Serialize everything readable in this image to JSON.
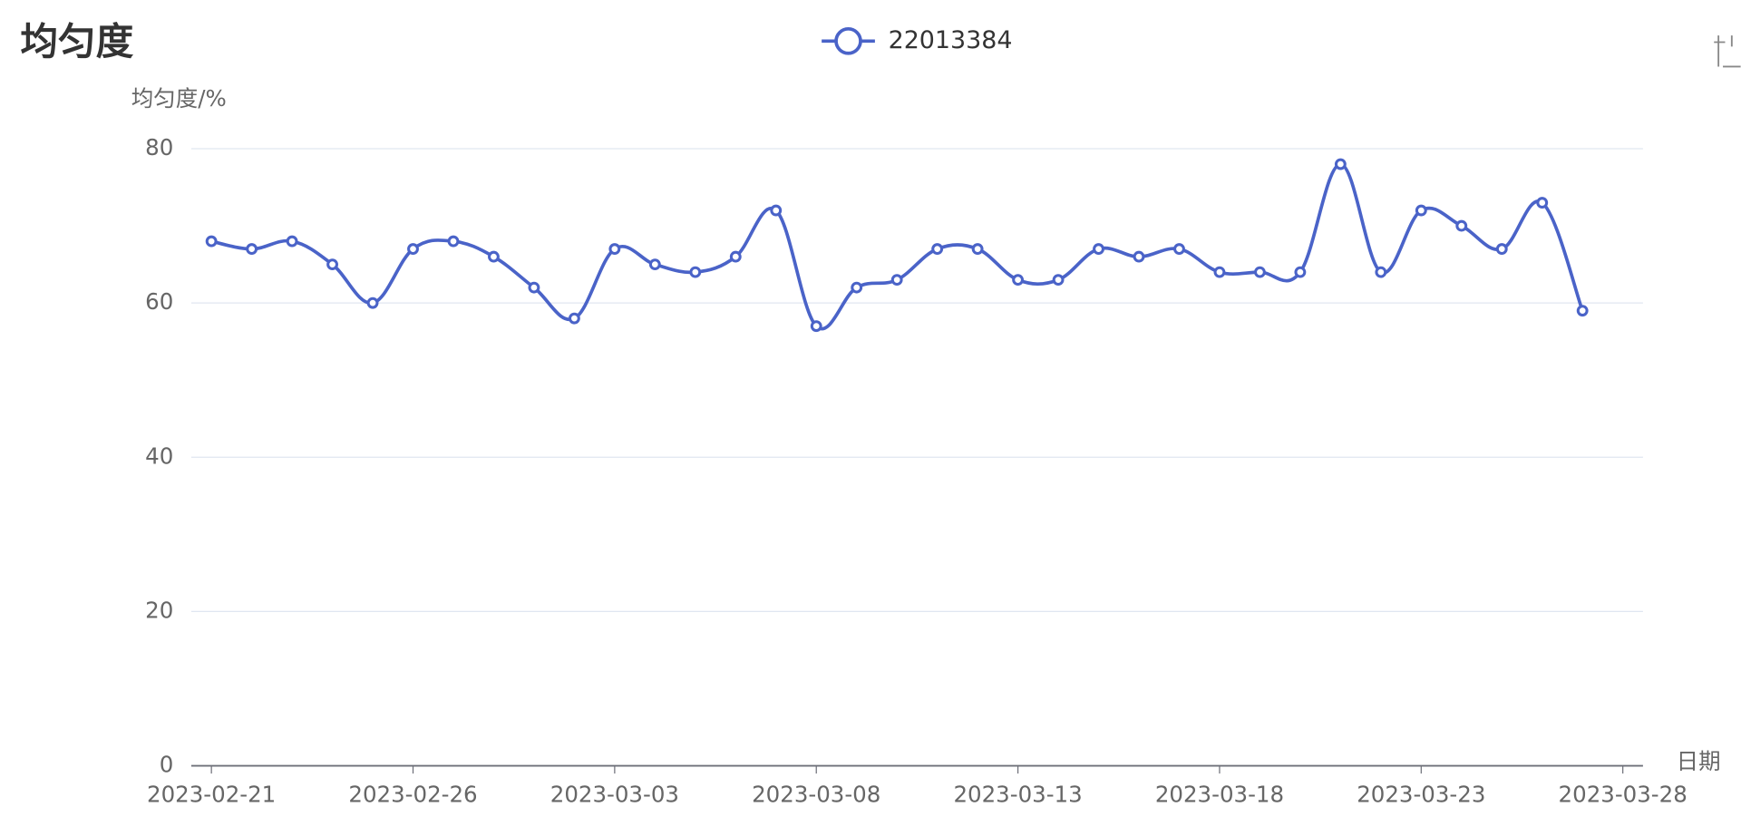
{
  "chart_data": {
    "type": "line",
    "title": "均匀度",
    "y_label": "均匀度/%",
    "x_label": "日期",
    "x": [
      "2023-02-21",
      "2023-02-22",
      "2023-02-23",
      "2023-02-24",
      "2023-02-25",
      "2023-02-26",
      "2023-02-27",
      "2023-02-28",
      "2023-03-01",
      "2023-03-02",
      "2023-03-03",
      "2023-03-04",
      "2023-03-05",
      "2023-03-06",
      "2023-03-07",
      "2023-03-08",
      "2023-03-09",
      "2023-03-10",
      "2023-03-11",
      "2023-03-12",
      "2023-03-13",
      "2023-03-14",
      "2023-03-15",
      "2023-03-16",
      "2023-03-17",
      "2023-03-18",
      "2023-03-19",
      "2023-03-20",
      "2023-03-21",
      "2023-03-22",
      "2023-03-23",
      "2023-03-24",
      "2023-03-25",
      "2023-03-26",
      "2023-03-27"
    ],
    "series": [
      {
        "name": "22013384",
        "color": "#4a63c8",
        "smooth": true,
        "values": [
          68,
          67,
          68,
          65,
          60,
          67,
          68,
          66,
          62,
          58,
          67,
          65,
          64,
          66,
          72,
          57,
          62,
          63,
          67,
          67,
          63,
          63,
          67,
          66,
          67,
          64,
          64,
          64,
          78,
          64,
          72,
          70,
          67,
          73,
          59
        ]
      }
    ],
    "xlim": [
      "2023-02-20T12:00:00Z",
      "2023-03-28T12:00:00Z"
    ],
    "xticks": [
      "2023-02-21",
      "2023-02-26",
      "2023-03-03",
      "2023-03-08",
      "2023-03-13",
      "2023-03-18",
      "2023-03-23",
      "2023-03-28"
    ],
    "ylim": [
      0,
      80
    ],
    "yticks": [
      0,
      20,
      40,
      60,
      80
    ],
    "grid": true,
    "legend": "top"
  }
}
